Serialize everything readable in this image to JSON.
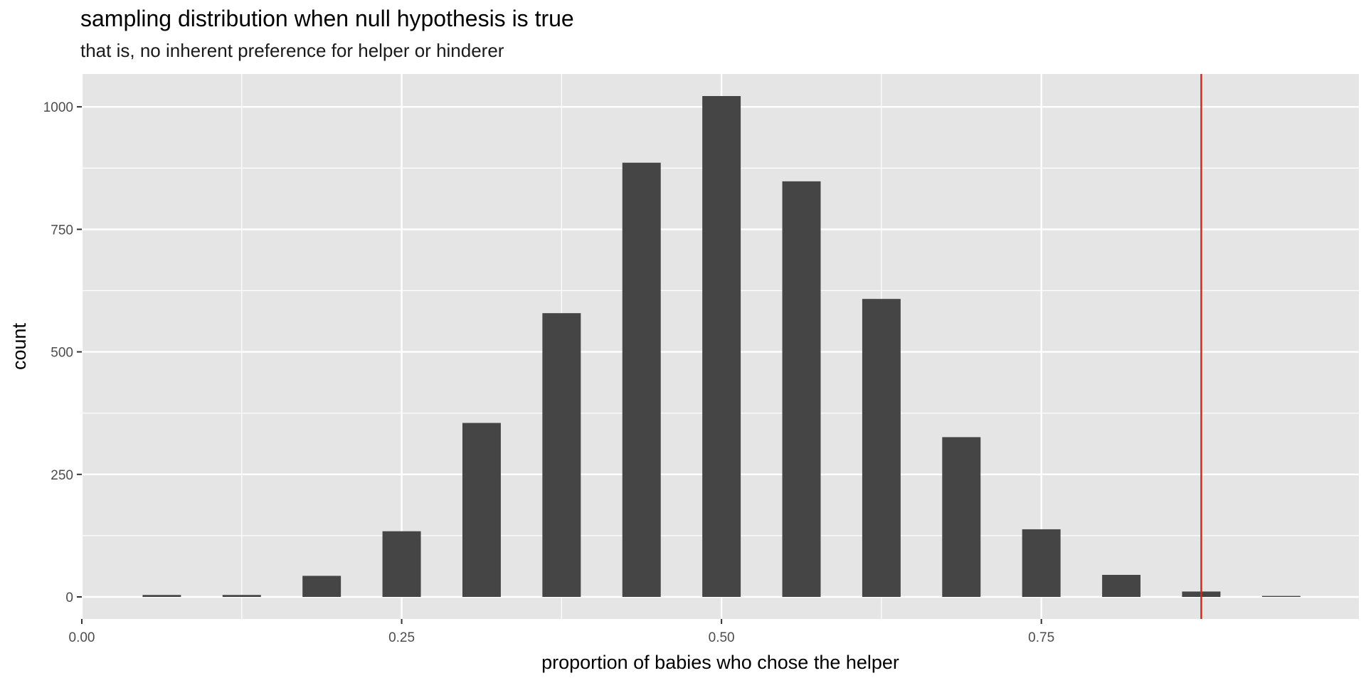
{
  "chart_data": {
    "type": "bar",
    "title": "sampling distribution when null hypothesis is true",
    "subtitle": "that is, no inherent preference for helper or hinderer",
    "xlabel": "proportion of babies who chose the helper",
    "ylabel": "count",
    "xlim": [
      0.0,
      0.9982
    ],
    "ylim": [
      -45,
      1067
    ],
    "x_ticks": [
      0.0,
      0.25,
      0.5,
      0.75
    ],
    "x_tick_labels": [
      "0.00",
      "0.25",
      "0.50",
      "0.75"
    ],
    "y_ticks": [
      0,
      250,
      500,
      750,
      1000
    ],
    "y_tick_labels": [
      "0",
      "250",
      "500",
      "750",
      "1000"
    ],
    "bin_width": 0.03,
    "x": [
      0.0625,
      0.125,
      0.1875,
      0.25,
      0.3125,
      0.375,
      0.4375,
      0.5,
      0.5625,
      0.625,
      0.6875,
      0.75,
      0.8125,
      0.875,
      0.9375
    ],
    "values": [
      4,
      4,
      43,
      134,
      355,
      579,
      886,
      1022,
      848,
      608,
      326,
      138,
      45,
      11,
      2
    ],
    "reference_line": {
      "x": 0.875,
      "color": "#e31a1c"
    },
    "colors": {
      "bar": "#454545",
      "panel": "#e5e5e5",
      "grid": "#ffffff"
    },
    "grid": true,
    "legend": "none"
  }
}
